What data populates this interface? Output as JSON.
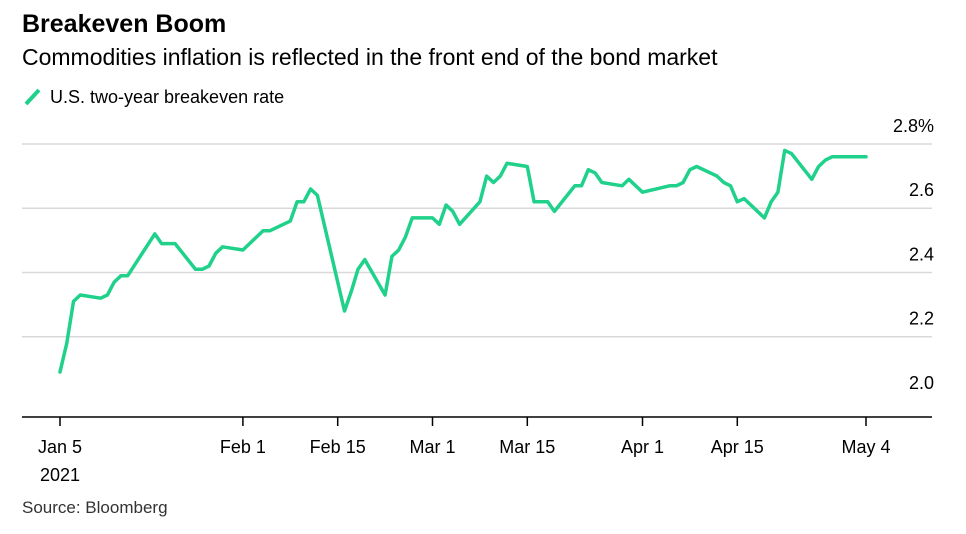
{
  "title": "Breakeven Boom",
  "subtitle": "Commodities inflation is reflected in the front end of the bond market",
  "source": "Source: Bloomberg",
  "colors": {
    "series": "#1fd18a",
    "grid": "#d9d9d9",
    "axis": "#000000"
  },
  "chart_data": {
    "type": "line",
    "title": "Breakeven Boom",
    "subtitle": "Commodities inflation is reflected in the front end of the bond market",
    "xlabel": "",
    "ylabel": "",
    "ylim": [
      1.95,
      2.8
    ],
    "y_ticks": [
      {
        "value": 2.0,
        "label": "2.0"
      },
      {
        "value": 2.2,
        "label": "2.2"
      },
      {
        "value": 2.4,
        "label": "2.4"
      },
      {
        "value": 2.6,
        "label": "2.6"
      },
      {
        "value": 2.8,
        "label": "2.8%"
      }
    ],
    "x_ticks": [
      {
        "date": "2021-01-05",
        "label": "Jan 5",
        "sublabel": "2021"
      },
      {
        "date": "2021-02-01",
        "label": "Feb 1"
      },
      {
        "date": "2021-02-15",
        "label": "Feb 15"
      },
      {
        "date": "2021-03-01",
        "label": "Mar 1"
      },
      {
        "date": "2021-03-15",
        "label": "Mar 15"
      },
      {
        "date": "2021-04-01",
        "label": "Apr 1"
      },
      {
        "date": "2021-04-15",
        "label": "Apr 15"
      },
      {
        "date": "2021-05-04",
        "label": "May 4"
      }
    ],
    "grid": true,
    "legend": "top-left",
    "series": [
      {
        "name": "U.S. two-year breakeven rate",
        "color": "#1fd18a",
        "x": [
          "2021-01-05",
          "2021-01-06",
          "2021-01-07",
          "2021-01-08",
          "2021-01-11",
          "2021-01-12",
          "2021-01-13",
          "2021-01-14",
          "2021-01-15",
          "2021-01-19",
          "2021-01-20",
          "2021-01-21",
          "2021-01-22",
          "2021-01-25",
          "2021-01-26",
          "2021-01-27",
          "2021-01-28",
          "2021-01-29",
          "2021-02-01",
          "2021-02-02",
          "2021-02-03",
          "2021-02-04",
          "2021-02-05",
          "2021-02-08",
          "2021-02-09",
          "2021-02-10",
          "2021-02-11",
          "2021-02-12",
          "2021-02-16",
          "2021-02-17",
          "2021-02-18",
          "2021-02-19",
          "2021-02-22",
          "2021-02-23",
          "2021-02-24",
          "2021-02-25",
          "2021-02-26",
          "2021-03-01",
          "2021-03-02",
          "2021-03-03",
          "2021-03-04",
          "2021-03-05",
          "2021-03-08",
          "2021-03-09",
          "2021-03-10",
          "2021-03-11",
          "2021-03-12",
          "2021-03-15",
          "2021-03-16",
          "2021-03-17",
          "2021-03-18",
          "2021-03-19",
          "2021-03-22",
          "2021-03-23",
          "2021-03-24",
          "2021-03-25",
          "2021-03-26",
          "2021-03-29",
          "2021-03-30",
          "2021-03-31",
          "2021-04-01",
          "2021-04-05",
          "2021-04-06",
          "2021-04-07",
          "2021-04-08",
          "2021-04-09",
          "2021-04-12",
          "2021-04-13",
          "2021-04-14",
          "2021-04-15",
          "2021-04-16",
          "2021-04-19",
          "2021-04-20",
          "2021-04-21",
          "2021-04-22",
          "2021-04-23",
          "2021-04-26",
          "2021-04-27",
          "2021-04-28",
          "2021-04-29",
          "2021-04-30",
          "2021-05-03",
          "2021-05-04"
        ],
        "values": [
          2.09,
          2.18,
          2.31,
          2.33,
          2.32,
          2.33,
          2.37,
          2.39,
          2.39,
          2.52,
          2.49,
          2.49,
          2.49,
          2.41,
          2.41,
          2.42,
          2.46,
          2.48,
          2.47,
          2.49,
          2.51,
          2.53,
          2.53,
          2.56,
          2.62,
          2.62,
          2.66,
          2.64,
          2.28,
          2.34,
          2.41,
          2.44,
          2.33,
          2.45,
          2.47,
          2.51,
          2.57,
          2.57,
          2.55,
          2.61,
          2.59,
          2.55,
          2.62,
          2.7,
          2.68,
          2.7,
          2.74,
          2.73,
          2.62,
          2.62,
          2.62,
          2.59,
          2.67,
          2.67,
          2.72,
          2.71,
          2.68,
          2.67,
          2.69,
          2.67,
          2.65,
          2.67,
          2.67,
          2.68,
          2.72,
          2.73,
          2.7,
          2.68,
          2.67,
          2.62,
          2.63,
          2.57,
          2.62,
          2.65,
          2.78,
          2.77,
          2.69,
          2.73,
          2.75,
          2.76,
          2.76,
          2.76,
          2.76
        ]
      }
    ]
  }
}
